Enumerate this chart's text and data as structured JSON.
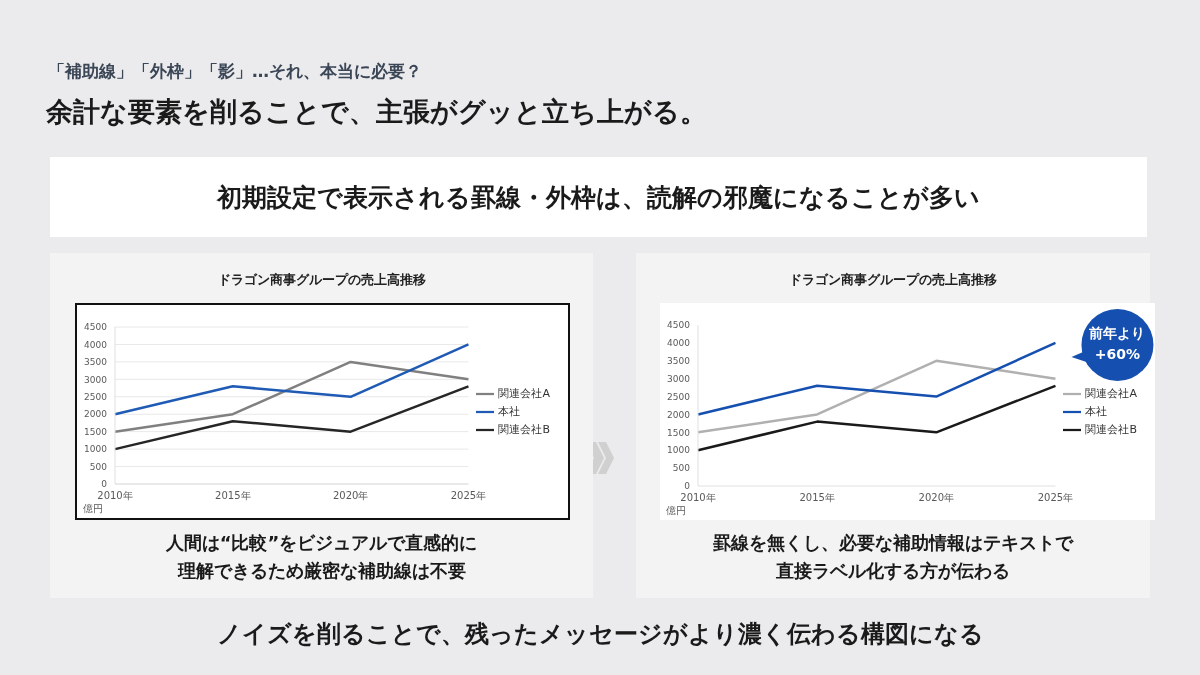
{
  "chart_data": [
    {
      "type": "other",
      "title": "余計な要素を削ることで、主張がグッと立ち上がる。",
      "subtitle": "「補助線」「外枠」「影」…それ、本当に必要？",
      "annotations": [
        "初期設定で表示される罫線・外枠は、読解の邪魔になることが多い",
        "ノイズを削ることで、残ったメッセージがより濃く伝わる構図になる"
      ]
    },
    {
      "type": "line",
      "title": "ドラゴン商事グループの売上高推移",
      "ylabel": "億円",
      "categories": [
        "2010年",
        "2015年",
        "2020年",
        "2025年"
      ],
      "series": [
        {
          "name": "関連会社A",
          "color": "#808080",
          "values": [
            1500,
            2000,
            3500,
            3000
          ]
        },
        {
          "name": "本社",
          "color": "#1f5bb5",
          "values": [
            2000,
            2800,
            2500,
            4000
          ]
        },
        {
          "name": "関連会社B",
          "color": "#262626",
          "values": [
            1000,
            1800,
            1500,
            2800
          ]
        }
      ],
      "ylim": [
        0,
        4500
      ],
      "yticks": [
        0,
        500,
        1000,
        1500,
        2000,
        2500,
        3000,
        3500,
        4000,
        4500
      ],
      "grid": "y",
      "legend": "right",
      "annotations": [
        "人間は“比較”をビジュアルで直感的に理解できるため厳密な補助線は不要"
      ]
    },
    {
      "type": "line",
      "title": "ドラゴン商事グループの売上高推移",
      "ylabel": "億円",
      "categories": [
        "2010年",
        "2015年",
        "2020年",
        "2025年"
      ],
      "series": [
        {
          "name": "関連会社A",
          "color": "#b0b0b0",
          "values": [
            1500,
            2000,
            3500,
            3000
          ]
        },
        {
          "name": "本社",
          "color": "#1550b0",
          "values": [
            2000,
            2800,
            2500,
            4000
          ]
        },
        {
          "name": "関連会社B",
          "color": "#1a1a1a",
          "values": [
            1000,
            1800,
            1500,
            2800
          ]
        }
      ],
      "ylim": [
        0,
        4500
      ],
      "yticks": [
        0,
        500,
        1000,
        1500,
        2000,
        2500,
        3000,
        3500,
        4000,
        4500
      ],
      "legend": "right",
      "annotations": [
        {
          "text": "前年より+60%",
          "x": "2025年",
          "y": 4000
        },
        "罫線を無くし、必要な補助情報はテキストで直接ラベル化する方が伝わる"
      ]
    }
  ]
}
